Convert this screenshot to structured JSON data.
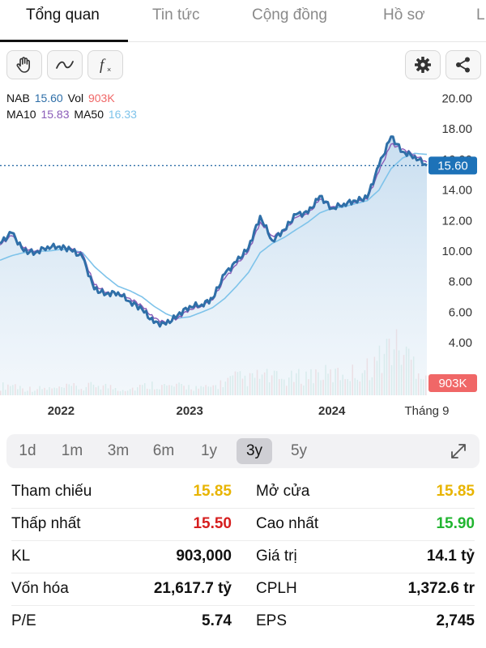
{
  "tabs": [
    {
      "label": "Tổng quan",
      "active": true
    },
    {
      "label": "Tin tức",
      "active": false
    },
    {
      "label": "Cộng đồng",
      "active": false
    },
    {
      "label": "Hồ sơ",
      "active": false
    },
    {
      "label": "L",
      "active": false
    }
  ],
  "toolbar": {
    "left_icons": [
      "hand-icon",
      "line-style-icon",
      "function-icon"
    ],
    "function_label": "f",
    "right_icons": [
      "gear-icon",
      "share-icon"
    ]
  },
  "legend": {
    "symbol": "NAB",
    "price": "15.60",
    "vol_label": "Vol",
    "vol_value": "903K",
    "ma10_label": "MA10",
    "ma10_value": "15.83",
    "ma50_label": "MA50",
    "ma50_value": "16.33"
  },
  "colors": {
    "price_line": "#2f6fa8",
    "ma10": "#8a5bb8",
    "ma50": "#7ec3ea",
    "volume": "#bfe3d8",
    "current_badge": "#1d72b8",
    "volume_badge": "#f06767",
    "area_top": "#c5dcef"
  },
  "chart_data": {
    "type": "line",
    "series": [
      {
        "name": "NAB",
        "x": [
          "2021-09",
          "2021-10",
          "2021-11",
          "2021-12",
          "2022-01",
          "2022-02",
          "2022-03",
          "2022-04",
          "2022-05",
          "2022-06",
          "2022-07",
          "2022-08",
          "2022-09",
          "2022-10",
          "2022-11",
          "2022-12",
          "2023-01",
          "2023-02",
          "2023-03",
          "2023-04",
          "2023-05",
          "2023-06",
          "2023-07",
          "2023-08",
          "2023-09",
          "2023-10",
          "2023-11",
          "2023-12",
          "2024-01",
          "2024-02",
          "2024-03",
          "2024-04",
          "2024-05",
          "2024-06",
          "2024-07",
          "2024-08",
          "2024-09"
        ],
        "values": [
          10.5,
          11.2,
          10.0,
          9.9,
          10.3,
          10.3,
          10.1,
          9.6,
          7.5,
          7.2,
          7.3,
          6.7,
          6.2,
          5.3,
          5.2,
          5.8,
          6.4,
          6.5,
          6.9,
          8.5,
          9.3,
          10.2,
          12.3,
          10.7,
          11.4,
          12.4,
          12.5,
          13.6,
          12.8,
          13.1,
          13.3,
          13.5,
          15.6,
          17.5,
          16.5,
          16.2,
          15.6
        ]
      },
      {
        "name": "MA10",
        "x": [
          "2021-09",
          "2021-10",
          "2021-11",
          "2021-12",
          "2022-01",
          "2022-02",
          "2022-03",
          "2022-04",
          "2022-05",
          "2022-06",
          "2022-07",
          "2022-08",
          "2022-09",
          "2022-10",
          "2022-11",
          "2022-12",
          "2023-01",
          "2023-02",
          "2023-03",
          "2023-04",
          "2023-05",
          "2023-06",
          "2023-07",
          "2023-08",
          "2023-09",
          "2023-10",
          "2023-11",
          "2023-12",
          "2024-01",
          "2024-02",
          "2024-03",
          "2024-04",
          "2024-05",
          "2024-06",
          "2024-07",
          "2024-08",
          "2024-09"
        ],
        "values": [
          10.4,
          11.0,
          10.2,
          10.0,
          10.3,
          10.3,
          10.2,
          9.8,
          7.8,
          7.3,
          7.3,
          6.9,
          6.4,
          5.6,
          5.3,
          5.6,
          6.2,
          6.4,
          6.8,
          8.2,
          9.1,
          10.0,
          11.9,
          11.0,
          11.3,
          12.2,
          12.4,
          13.4,
          12.9,
          13.1,
          13.2,
          13.4,
          15.2,
          17.0,
          16.7,
          16.3,
          15.83
        ]
      },
      {
        "name": "MA50",
        "x": [
          "2021-09",
          "2021-10",
          "2021-11",
          "2021-12",
          "2022-01",
          "2022-02",
          "2022-03",
          "2022-04",
          "2022-05",
          "2022-06",
          "2022-07",
          "2022-08",
          "2022-09",
          "2022-10",
          "2022-11",
          "2022-12",
          "2023-01",
          "2023-02",
          "2023-03",
          "2023-04",
          "2023-05",
          "2023-06",
          "2023-07",
          "2023-08",
          "2023-09",
          "2023-10",
          "2023-11",
          "2023-12",
          "2024-01",
          "2024-02",
          "2024-03",
          "2024-04",
          "2024-05",
          "2024-06",
          "2024-07",
          "2024-08",
          "2024-09"
        ],
        "values": [
          9.4,
          9.7,
          9.9,
          10.0,
          10.0,
          10.1,
          10.1,
          9.9,
          9.0,
          8.3,
          7.7,
          7.4,
          7.0,
          6.4,
          5.9,
          5.6,
          5.7,
          6.0,
          6.3,
          6.9,
          7.7,
          8.6,
          9.9,
          10.5,
          10.9,
          11.4,
          11.9,
          12.5,
          12.8,
          12.9,
          13.1,
          13.3,
          14.0,
          15.4,
          16.1,
          16.4,
          16.33
        ]
      }
    ],
    "volume": [
      0.4,
      0.5,
      0.3,
      0.3,
      0.3,
      0.3,
      0.4,
      0.3,
      0.5,
      0.4,
      0.3,
      0.3,
      0.4,
      0.5,
      0.4,
      0.4,
      0.4,
      0.3,
      0.4,
      0.6,
      0.8,
      0.7,
      0.9,
      0.8,
      0.7,
      0.8,
      0.9,
      1.0,
      0.9,
      1.0,
      1.0,
      1.2,
      1.6,
      2.3,
      2.0,
      1.5,
      0.9
    ],
    "ylim": [
      3.0,
      20.5
    ],
    "yticks": [
      "20.00",
      "18.00",
      "16.00",
      "14.00",
      "12.00",
      "10.00",
      "8.00",
      "6.00",
      "4.00"
    ],
    "ytick_values": [
      20,
      18,
      16,
      14,
      12,
      10,
      8,
      6,
      4
    ],
    "xtick_labels": [
      "2022",
      "2023",
      "2024",
      "Tháng 9"
    ],
    "xtick_dates": [
      "2022-01",
      "2023-01",
      "2024-01",
      "2024-09"
    ],
    "current_price_label": "15.60",
    "current_price": 15.6,
    "volume_label": "903K",
    "grid": false
  },
  "periods": [
    {
      "label": "1d",
      "active": false
    },
    {
      "label": "1m",
      "active": false
    },
    {
      "label": "3m",
      "active": false
    },
    {
      "label": "6m",
      "active": false
    },
    {
      "label": "1y",
      "active": false
    },
    {
      "label": "3y",
      "active": true
    },
    {
      "label": "5y",
      "active": false
    }
  ],
  "stats": [
    {
      "l_label": "Tham chiếu",
      "l_value": "15.85",
      "l_color": "yellow",
      "r_label": "Mở cửa",
      "r_value": "15.85",
      "r_color": "yellow"
    },
    {
      "l_label": "Thấp nhất",
      "l_value": "15.50",
      "l_color": "red",
      "r_label": "Cao nhất",
      "r_value": "15.90",
      "r_color": "green"
    },
    {
      "l_label": "KL",
      "l_value": "903,000",
      "l_color": "black",
      "r_label": "Giá trị",
      "r_value": "14.1 tỷ",
      "r_color": "black"
    },
    {
      "l_label": "Vốn hóa",
      "l_value": "21,617.7 tỷ",
      "l_color": "black",
      "r_label": "CPLH",
      "r_value": "1,372.6 tr",
      "r_color": "black"
    },
    {
      "l_label": "P/E",
      "l_value": "5.74",
      "l_color": "black",
      "r_label": "EPS",
      "r_value": "2,745",
      "r_color": "black"
    }
  ]
}
